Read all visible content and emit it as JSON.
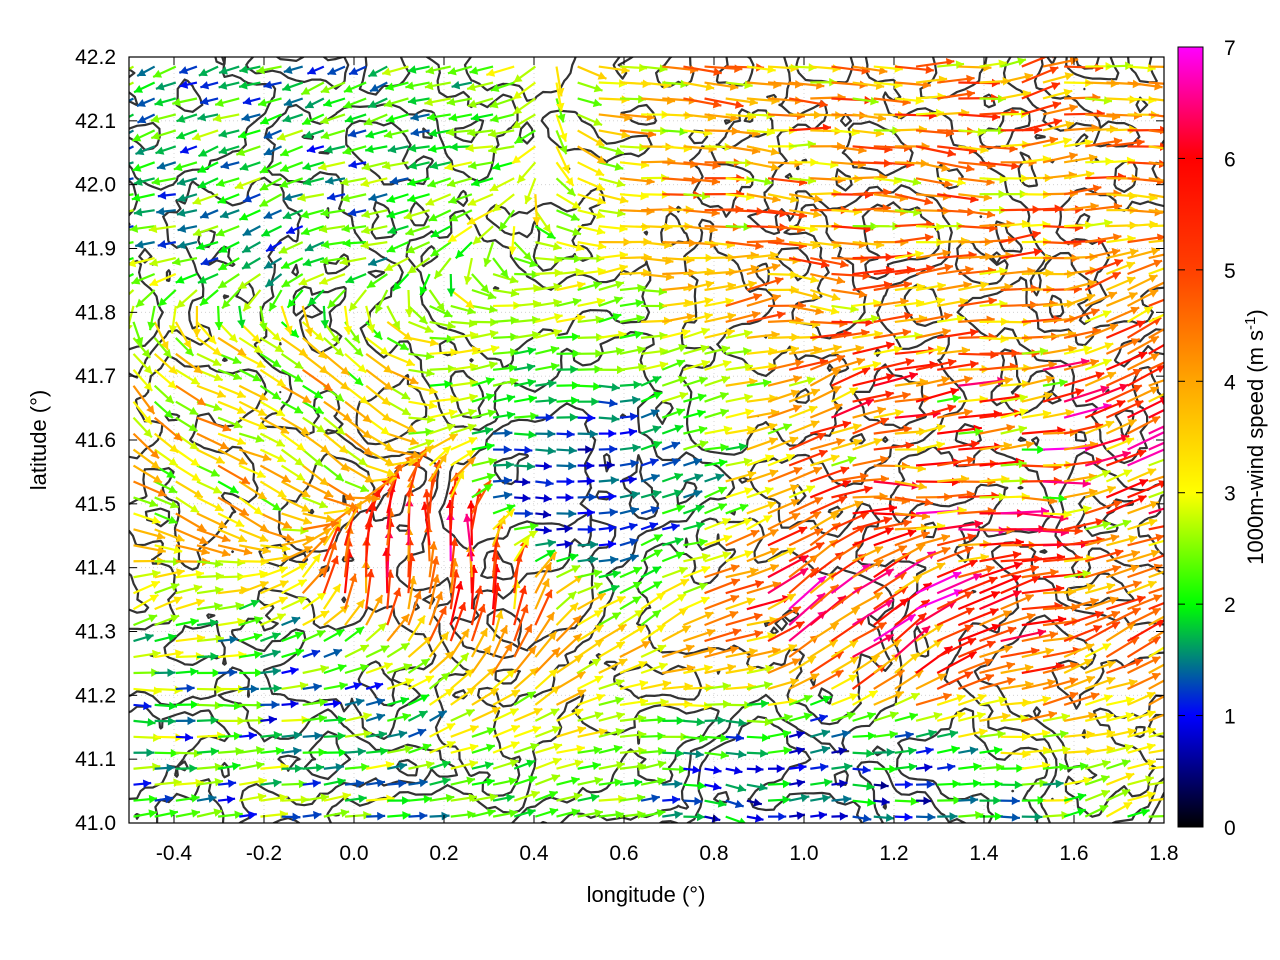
{
  "chart_data": {
    "type": "vector-field",
    "xlabel": "longitude (°)",
    "ylabel": "latitude (°)",
    "xlim": [
      -0.5,
      1.8
    ],
    "ylim": [
      41.0,
      42.2
    ],
    "x_ticks": [
      "-0.4",
      "-0.2",
      "0.0",
      "0.2",
      "0.4",
      "0.6",
      "0.8",
      "1.0",
      "1.2",
      "1.4",
      "1.6",
      "1.8"
    ],
    "x_tick_values": [
      -0.4,
      -0.2,
      0.0,
      0.2,
      0.4,
      0.6,
      0.8,
      1.0,
      1.2,
      1.4,
      1.6,
      1.8
    ],
    "y_ticks": [
      "41.0",
      "41.1",
      "41.2",
      "41.3",
      "41.4",
      "41.5",
      "41.6",
      "41.7",
      "41.8",
      "41.9",
      "42.0",
      "42.1",
      "42.2"
    ],
    "y_tick_values": [
      41.0,
      41.1,
      41.2,
      41.3,
      41.4,
      41.5,
      41.6,
      41.7,
      41.8,
      41.9,
      42.0,
      42.1,
      42.2
    ],
    "grid": true,
    "colorbar": {
      "label": "1000m-wind speed (m s-1)",
      "label_main": "1000m-wind speed (m s",
      "label_sup": "-1",
      "label_end": ")",
      "range": [
        0,
        7
      ],
      "ticks": [
        "0",
        "1",
        "2",
        "3",
        "4",
        "5",
        "6",
        "7"
      ],
      "tick_values": [
        0,
        1,
        2,
        3,
        4,
        5,
        6,
        7
      ],
      "colors": [
        "#000000",
        "#0000ff",
        "#00ff00",
        "#ffff00",
        "#ffa500",
        "#ff4000",
        "#ff0000",
        "#ff00ff"
      ]
    },
    "wind_regions": [
      {
        "region": "northwest",
        "lon": [
          -0.5,
          0.05
        ],
        "lat": [
          41.85,
          42.2
        ],
        "dir_deg": 200,
        "speed": [
          1.0,
          2.8
        ]
      },
      {
        "region": "west",
        "lon": [
          -0.5,
          0.1
        ],
        "lat": [
          41.35,
          41.85
        ],
        "dir_deg": 330,
        "speed": [
          2.0,
          4.5
        ]
      },
      {
        "region": "southwest",
        "lon": [
          -0.5,
          0.2
        ],
        "lat": [
          41.0,
          41.35
        ],
        "dir_deg": 10,
        "speed": [
          0.8,
          3.0
        ]
      },
      {
        "region": "central-south",
        "lon": [
          0.05,
          0.35
        ],
        "lat": [
          41.1,
          41.75
        ],
        "dir_deg": 90,
        "speed": [
          4.0,
          7.0
        ]
      },
      {
        "region": "northeast",
        "lon": [
          0.5,
          1.8
        ],
        "lat": [
          41.75,
          42.2
        ],
        "dir_deg": 5,
        "speed": [
          2.5,
          5.5
        ]
      },
      {
        "region": "east",
        "lon": [
          0.9,
          1.8
        ],
        "lat": [
          41.35,
          41.75
        ],
        "dir_deg": 10,
        "speed": [
          2.0,
          7.0
        ]
      },
      {
        "region": "southeast",
        "lon": [
          0.5,
          1.8
        ],
        "lat": [
          41.15,
          41.5
        ],
        "dir_deg": 30,
        "speed": [
          3.5,
          7.0
        ]
      },
      {
        "region": "calm-center",
        "lon": [
          0.35,
          0.5
        ],
        "lat": [
          41.3,
          41.7
        ],
        "dir_deg": 0,
        "speed": [
          0.2,
          1.5
        ]
      },
      {
        "region": "south-coast",
        "lon": [
          0.3,
          1.8
        ],
        "lat": [
          41.0,
          41.12
        ],
        "dir_deg": 0,
        "speed": [
          0.5,
          2.2
        ]
      }
    ],
    "contours": "topographic elevation isolines (dark gray)"
  }
}
